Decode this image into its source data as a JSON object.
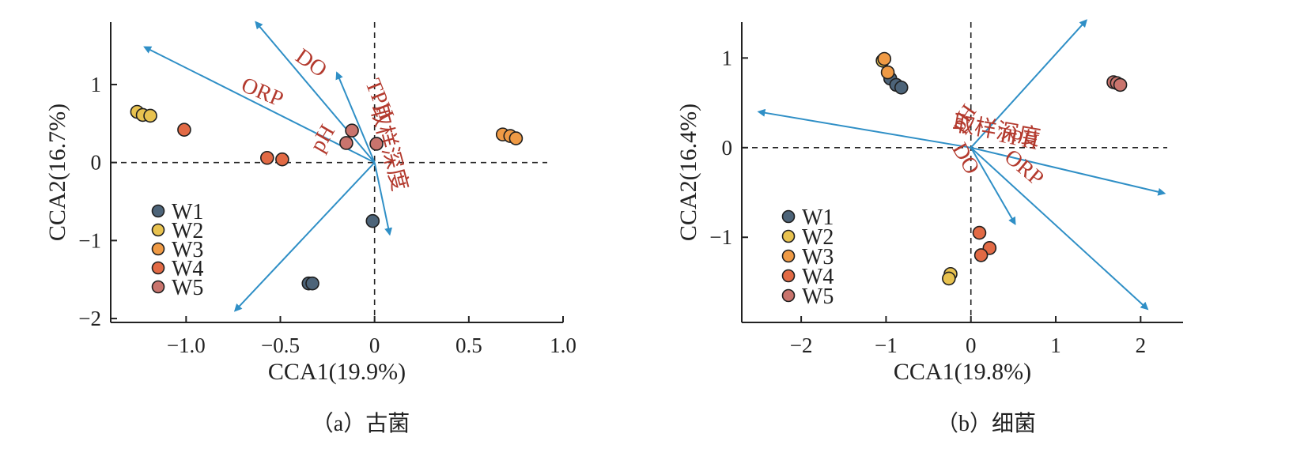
{
  "chart_data": [
    {
      "type": "scatter",
      "caption": "（a）古菌",
      "xlabel": "CCA1(19.9%)",
      "ylabel": "CCA2(16.7%)",
      "xlim": [
        -1.4,
        1.0
      ],
      "ylim": [
        -2.05,
        1.8
      ],
      "xticks": [
        -1.0,
        -0.5,
        0,
        0.5,
        1.0
      ],
      "xtick_labels": [
        "−1.0",
        "−0.5",
        "0",
        "0.5",
        "1.0"
      ],
      "yticks": [
        -2,
        -1,
        0,
        1
      ],
      "ytick_labels": [
        "−2",
        "−1",
        "0",
        "1"
      ],
      "legend_position": "bottom-left",
      "series": [
        {
          "name": "W1",
          "color": "#4d6479",
          "points": [
            [
              -0.35,
              -1.55
            ],
            [
              -0.33,
              -1.55
            ],
            [
              -0.01,
              -0.75
            ]
          ]
        },
        {
          "name": "W2",
          "color": "#e8c24f",
          "points": [
            [
              -1.26,
              0.65
            ],
            [
              -1.23,
              0.61
            ],
            [
              -1.19,
              0.6
            ]
          ]
        },
        {
          "name": "W3",
          "color": "#ef9a45",
          "points": [
            [
              0.68,
              0.36
            ],
            [
              0.72,
              0.34
            ],
            [
              0.75,
              0.31
            ]
          ]
        },
        {
          "name": "W4",
          "color": "#e26a45",
          "points": [
            [
              -1.01,
              0.42
            ],
            [
              -0.57,
              0.06
            ],
            [
              -0.49,
              0.04
            ]
          ]
        },
        {
          "name": "W5",
          "color": "#c9746d",
          "points": [
            [
              -0.15,
              0.25
            ],
            [
              -0.12,
              0.41
            ],
            [
              0.01,
              0.24
            ]
          ]
        }
      ],
      "arrows": [
        {
          "label": "DO",
          "x": -0.63,
          "y": 1.8
        },
        {
          "label": "ORP",
          "x": -1.22,
          "y": 1.48
        },
        {
          "label": "TPH",
          "x": -0.2,
          "y": 1.15
        },
        {
          "label": "pH",
          "x": -0.74,
          "y": -1.9
        },
        {
          "label": "取样深度",
          "x": 0.08,
          "y": -0.92
        }
      ]
    },
    {
      "type": "scatter",
      "caption": "（b）细菌",
      "xlabel": "CCA1(19.8%)",
      "ylabel": "CCA2(16.4%)",
      "xlim": [
        -2.7,
        2.5
      ],
      "ylim": [
        -1.95,
        1.4
      ],
      "xticks": [
        -2,
        -1,
        0,
        1,
        2
      ],
      "xtick_labels": [
        "−2",
        "−1",
        "0",
        "1",
        "2"
      ],
      "yticks": [
        -1,
        0,
        1
      ],
      "ytick_labels": [
        "−1",
        "0",
        "1"
      ],
      "legend_position": "bottom-left",
      "series": [
        {
          "name": "W1",
          "color": "#4d6479",
          "points": [
            [
              -0.95,
              0.77
            ],
            [
              -0.88,
              0.7
            ],
            [
              -0.82,
              0.67
            ]
          ]
        },
        {
          "name": "W2",
          "color": "#e8c24f",
          "points": [
            [
              -1.04,
              0.97
            ],
            [
              -0.24,
              -1.41
            ],
            [
              -0.26,
              -1.46
            ]
          ]
        },
        {
          "name": "W3",
          "color": "#ef9a45",
          "points": [
            [
              -1.02,
              0.99
            ],
            [
              -0.98,
              0.84
            ]
          ]
        },
        {
          "name": "W4",
          "color": "#e26a45",
          "points": [
            [
              0.1,
              -0.95
            ],
            [
              0.22,
              -1.12
            ],
            [
              0.12,
              -1.2
            ]
          ]
        },
        {
          "name": "W5",
          "color": "#c9746d",
          "points": [
            [
              1.68,
              0.73
            ],
            [
              1.72,
              0.72
            ],
            [
              1.76,
              0.7
            ]
          ]
        }
      ],
      "arrows": [
        {
          "label": "pH",
          "x": 1.36,
          "y": 1.42
        },
        {
          "label": "取样深度",
          "x": -2.5,
          "y": 0.4
        },
        {
          "label": "TPH",
          "x": 2.28,
          "y": -0.51
        },
        {
          "label": "DO",
          "x": 0.52,
          "y": -0.85
        },
        {
          "label": "ORP",
          "x": 2.08,
          "y": -1.8
        }
      ]
    }
  ],
  "colors": {
    "arrow": "#2f8fc6",
    "arrow_label": "#b33a2e",
    "axis": "#222222",
    "point_stroke": "#1f1f1f"
  }
}
